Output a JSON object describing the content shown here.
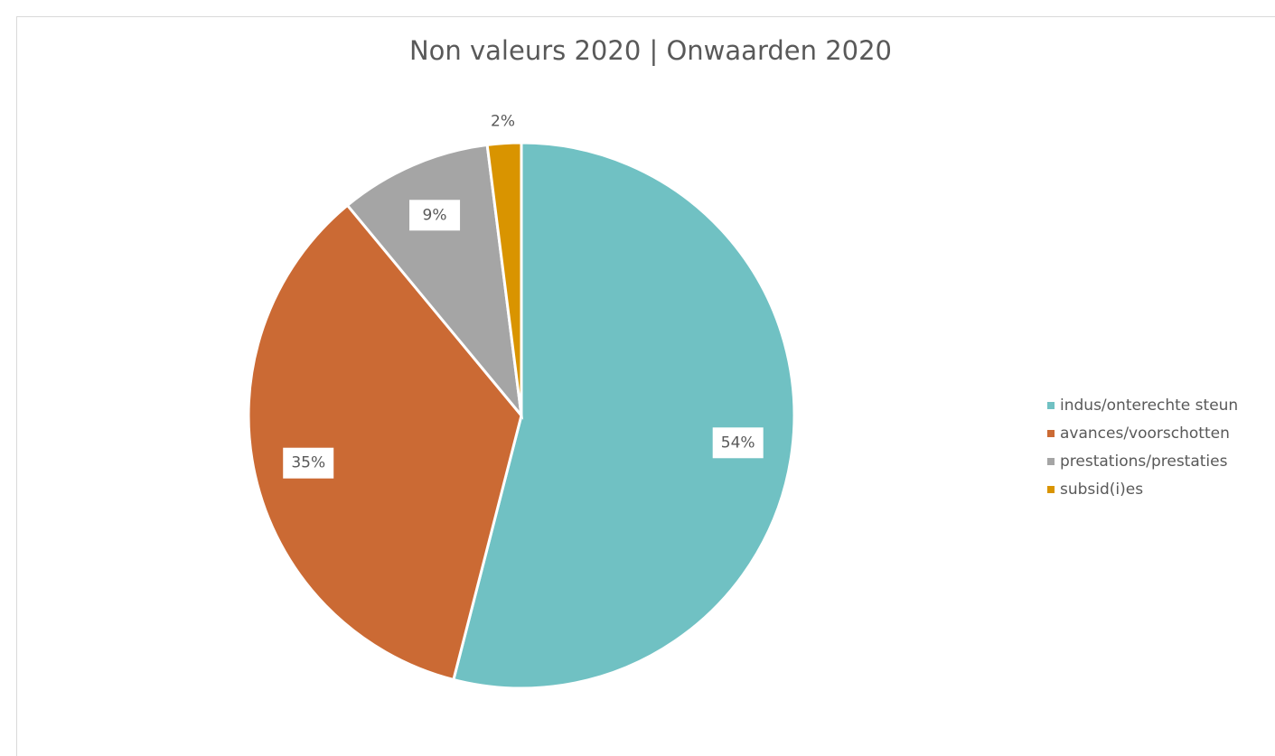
{
  "chart_data": {
    "type": "pie",
    "title": "Non valeurs 2020 | Onwaarden 2020",
    "categories": [
      "indus/onterechte steun",
      "avances/voorschotten",
      "prestations/prestaties",
      "subsid(i)es"
    ],
    "values": [
      54,
      35,
      9,
      2
    ],
    "value_labels": [
      "54%",
      "35%",
      "9%",
      "2%"
    ],
    "colors": [
      "#70c1c3",
      "#cb6a34",
      "#a5a5a5",
      "#d99400"
    ],
    "legend": "right"
  }
}
